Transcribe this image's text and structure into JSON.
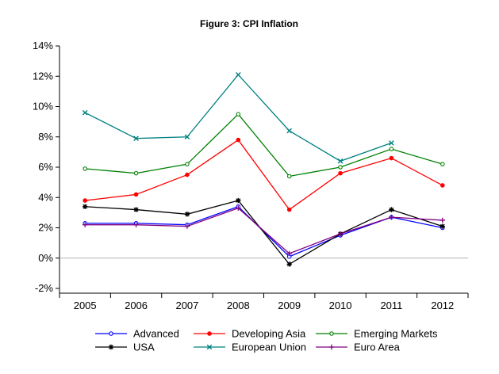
{
  "chart_data": {
    "type": "line",
    "title": "Figure 3: CPI Inflation",
    "categories": [
      "2005",
      "2006",
      "2007",
      "2008",
      "2009",
      "2010",
      "2011",
      "2012"
    ],
    "ylim": [
      -2,
      14
    ],
    "yticks": [
      -2,
      0,
      2,
      4,
      6,
      8,
      10,
      12,
      14
    ],
    "ytick_labels": [
      "-2%",
      "0%",
      "2%",
      "4%",
      "6%",
      "8%",
      "10%",
      "12%",
      "14%"
    ],
    "grid": false,
    "legend_position": "bottom",
    "series": [
      {
        "name": "Advanced",
        "color": "#0000ff",
        "marker": "circle-open",
        "values": [
          2.3,
          2.3,
          2.2,
          3.4,
          0.1,
          1.5,
          2.7,
          2.0
        ]
      },
      {
        "name": "Developing Asia",
        "color": "#ff0000",
        "marker": "dot",
        "values": [
          3.8,
          4.2,
          5.5,
          7.8,
          3.2,
          5.6,
          6.6,
          4.8
        ]
      },
      {
        "name": "Emerging Markets",
        "color": "#008000",
        "marker": "circle-open",
        "values": [
          5.9,
          5.6,
          6.2,
          9.5,
          5.4,
          6.0,
          7.2,
          6.2
        ]
      },
      {
        "name": "USA",
        "color": "#000000",
        "marker": "asterisk",
        "values": [
          3.4,
          3.2,
          2.9,
          3.8,
          -0.4,
          1.6,
          3.2,
          2.1
        ]
      },
      {
        "name": "European Union",
        "color": "#008080",
        "marker": "x",
        "values": [
          9.6,
          7.9,
          8.0,
          12.1,
          8.4,
          6.4,
          7.6,
          null
        ]
      },
      {
        "name": "Euro Area",
        "color": "#800080",
        "marker": "plus",
        "values": [
          2.2,
          2.2,
          2.1,
          3.3,
          0.3,
          1.6,
          2.7,
          2.5
        ]
      }
    ]
  }
}
